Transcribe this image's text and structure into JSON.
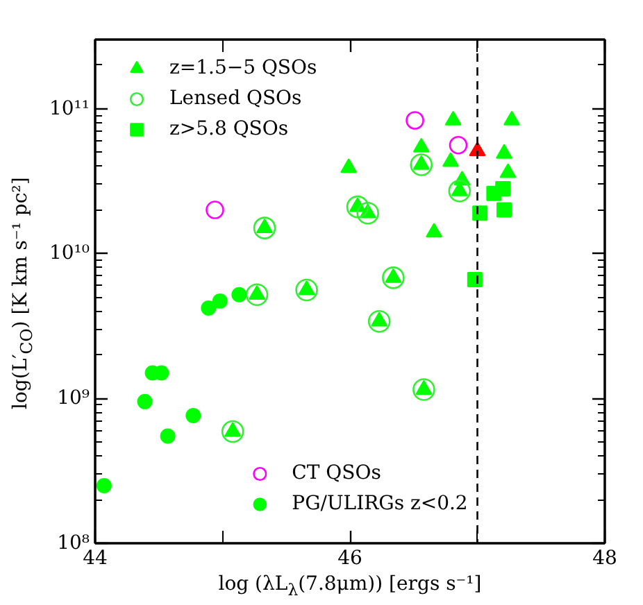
{
  "chart_data": {
    "type": "scatter",
    "xlabel": "log (λL$_{λ}$(7.8μm)) [ergs s⁻¹]",
    "ylabel": "log(L′$_{CO}$) [K km s⁻¹ pc²]",
    "log": "y",
    "xlim": [
      44,
      48
    ],
    "ylim": [
      100000000,
      300000000000
    ],
    "xticks": [
      44,
      {
        "value": 45,
        "label": null
      },
      46,
      {
        "value": 47,
        "label": null
      },
      48
    ],
    "yticks": [
      {
        "value": 100000000,
        "label": "10⁸"
      },
      {
        "value": 1000000000,
        "label": "10⁹"
      },
      {
        "value": 10000000000,
        "label": "10¹⁰"
      },
      {
        "value": 100000000000,
        "label": "10¹¹"
      }
    ],
    "grid": false,
    "legend": "top left",
    "ref_lines": [
      {
        "axis": "x",
        "value": 47,
        "color": "#000000",
        "line_style": "dashed"
      }
    ],
    "series": [
      {
        "name": "z=1.5−5 QSOs",
        "color": "#00ff00",
        "marker": "triangle",
        "x": [
          45.33,
          45.27,
          45.66,
          45.99,
          46.06,
          46.14,
          46.56,
          46.56,
          46.81,
          46.79,
          46.88,
          46.86,
          47.21,
          47.24,
          47.27,
          46.66,
          46.34,
          46.23,
          46.58,
          45.08
        ],
        "values": [
          15000000000.0,
          5200000000.0,
          5600000000.0,
          39000000000.0,
          21000000000.0,
          19000000000.0,
          54000000000.0,
          41000000000.0,
          83000000000.0,
          43000000000.0,
          32000000000.0,
          27000000000.0,
          49000000000.0,
          36000000000.0,
          83000000000.0,
          14000000000.0,
          6800000000.0,
          3400000000.0,
          1150000000.0,
          590000000.0
        ]
      },
      {
        "name": "Lensed QSOs",
        "color": "#33ee33",
        "marker": "circle",
        "x": [
          45.33,
          45.27,
          45.66,
          46.06,
          46.14,
          46.56,
          46.86,
          46.34,
          46.23,
          46.58,
          45.08
        ],
        "values": [
          15000000000.0,
          5200000000.0,
          5600000000.0,
          21000000000.0,
          19000000000.0,
          41000000000.0,
          27000000000.0,
          6800000000.0,
          3400000000.0,
          1150000000.0,
          590000000.0
        ]
      },
      {
        "name": "z>5.8 QSOs",
        "color": "#00ff00",
        "marker": "square",
        "x": [
          47.13,
          47.2,
          47.02,
          47.21,
          46.98
        ],
        "values": [
          26000000000.0,
          28000000000.0,
          19000000000.0,
          20000000000.0,
          6600000000.0
        ]
      },
      {
        "name": "CT QSOs",
        "color": "#ff00ff",
        "marker": "circle",
        "x": [
          44.94,
          46.51,
          46.85
        ],
        "values": [
          20000000000.0,
          83000000000.0,
          56000000000.0
        ]
      },
      {
        "name": "PG/ULIRGs z<0.2",
        "color": "#00ff00",
        "marker": "circle",
        "x": [
          44.07,
          44.39,
          44.45,
          44.52,
          44.57,
          44.77,
          44.89,
          44.98,
          45.13
        ],
        "values": [
          250000000.0,
          950000000.0,
          1500000000.0,
          1500000000.0,
          550000000.0,
          760000000.0,
          4200000000.0,
          4700000000.0,
          5200000000.0
        ]
      },
      {
        "color": "#ff0000",
        "marker": "triangle",
        "x": [
          47.0
        ],
        "values": [
          51000000000.0
        ]
      }
    ]
  }
}
